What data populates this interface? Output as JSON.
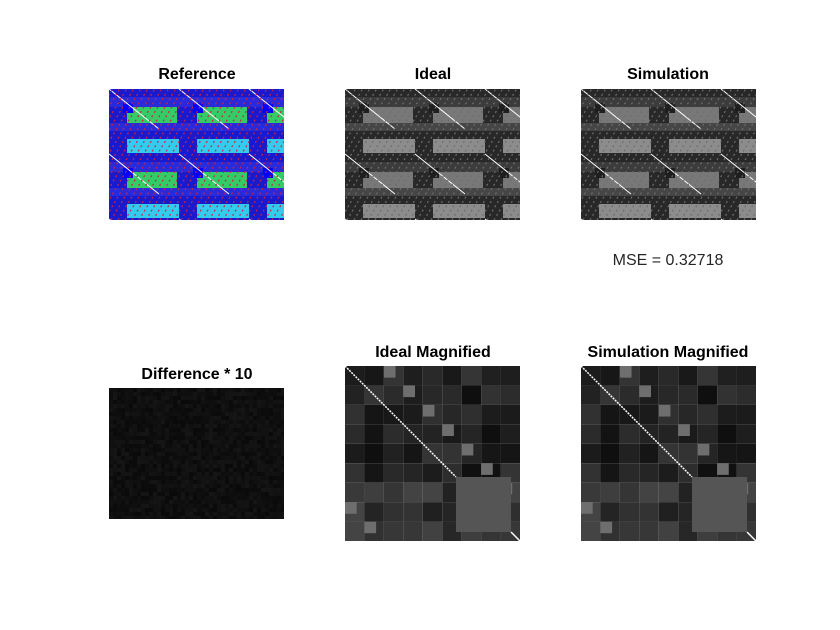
{
  "figure": {
    "panels": [
      {
        "id": "reference",
        "title": "Reference",
        "palette": "color"
      },
      {
        "id": "ideal",
        "title": "Ideal",
        "palette": "gray"
      },
      {
        "id": "simulation",
        "title": "Simulation",
        "palette": "gray"
      },
      {
        "id": "difference",
        "title": "Difference * 10",
        "palette": "dark"
      },
      {
        "id": "ideal-magnified",
        "title": "Ideal Magnified",
        "palette": "gray"
      },
      {
        "id": "simulation-magnified",
        "title": "Simulation Magnified",
        "palette": "gray"
      }
    ],
    "mse_text": "MSE = 0.32718",
    "colors": {
      "blue": "#1a1acc",
      "green": "#33cc66",
      "cyan": "#33ccee",
      "red": "#cc2244",
      "background": "#ffffff"
    }
  }
}
